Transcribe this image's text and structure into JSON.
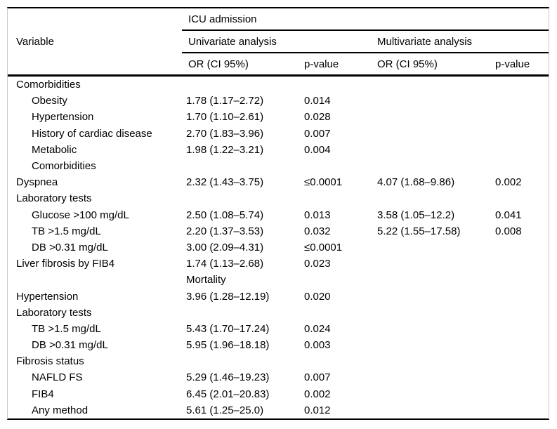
{
  "table": {
    "header": {
      "variable": "Variable",
      "group": "ICU admission",
      "subgroup_univariate": "Univariate analysis",
      "subgroup_multivariate": "Multivariate analysis",
      "col_or_univ": "OR (CI 95%)",
      "col_p_univ": "p-value",
      "col_or_multi": "OR (CI 95%)",
      "col_p_multi": "p-value"
    },
    "rows": [
      {
        "label": "Comorbidities",
        "level": 0,
        "or1": "",
        "p1": "",
        "or2": "",
        "p2": ""
      },
      {
        "label": "Obesity",
        "level": 1,
        "or1": "1.78 (1.17–2.72)",
        "p1": "0.014",
        "or2": "",
        "p2": ""
      },
      {
        "label": "Hypertension",
        "level": 1,
        "or1": "1.70 (1.10–2.61)",
        "p1": "0.028",
        "or2": "",
        "p2": ""
      },
      {
        "label": "History of cardiac disease",
        "level": 1,
        "or1": "2.70 (1.83–3.96)",
        "p1": "0.007",
        "or2": "",
        "p2": ""
      },
      {
        "label": "Metabolic",
        "level": 1,
        "or1": "1.98 (1.22–3.21)",
        "p1": "0.004",
        "or2": "",
        "p2": ""
      },
      {
        "label": "Comorbidities",
        "level": 1,
        "or1": "",
        "p1": "",
        "or2": "",
        "p2": ""
      },
      {
        "label": "Dyspnea",
        "level": 0,
        "or1": "2.32 (1.43–3.75)",
        "p1": "≤0.0001",
        "or2": "4.07 (1.68–9.86)",
        "p2": "0.002"
      },
      {
        "label": "Laboratory tests",
        "level": 0,
        "or1": "",
        "p1": "",
        "or2": "",
        "p2": ""
      },
      {
        "label": "Glucose >100 mg/dL",
        "level": 1,
        "or1": "2.50 (1.08–5.74)",
        "p1": "0.013",
        "or2": "3.58 (1.05–12.2)",
        "p2": "0.041"
      },
      {
        "label": "TB >1.5 mg/dL",
        "level": 1,
        "or1": "2.20 (1.37–3.53)",
        "p1": "0.032",
        "or2": "5.22 (1.55–17.58)",
        "p2": "0.008"
      },
      {
        "label": "DB >0.31 mg/dL",
        "level": 1,
        "or1": "3.00 (2.09–4.31)",
        "p1": "≤0.0001",
        "or2": "",
        "p2": ""
      },
      {
        "label": "Liver fibrosis by FIB4",
        "level": 0,
        "or1": "1.74 (1.13–2.68)",
        "p1": "0.023",
        "or2": "",
        "p2": ""
      },
      {
        "label": "",
        "level": 0,
        "or1": "Mortality",
        "p1": "",
        "or2": "",
        "p2": ""
      },
      {
        "label": "Hypertension",
        "level": 0,
        "or1": "3.96 (1.28–12.19)",
        "p1": "0.020",
        "or2": "",
        "p2": ""
      },
      {
        "label": "Laboratory tests",
        "level": 0,
        "or1": "",
        "p1": "",
        "or2": "",
        "p2": ""
      },
      {
        "label": "TB >1.5 mg/dL",
        "level": 1,
        "or1": "5.43 (1.70–17.24)",
        "p1": "0.024",
        "or2": "",
        "p2": ""
      },
      {
        "label": "DB >0.31 mg/dL",
        "level": 1,
        "or1": "5.95 (1.96–18.18)",
        "p1": "0.003",
        "or2": "",
        "p2": ""
      },
      {
        "label": "Fibrosis status",
        "level": 0,
        "or1": "",
        "p1": "",
        "or2": "",
        "p2": ""
      },
      {
        "label": "NAFLD FS",
        "level": 1,
        "or1": "5.29 (1.46–19.23)",
        "p1": "0.007",
        "or2": "",
        "p2": ""
      },
      {
        "label": "FIB4",
        "level": 1,
        "or1": "6.45 (2.01–20.83)",
        "p1": "0.002",
        "or2": "",
        "p2": ""
      },
      {
        "label": "Any method",
        "level": 1,
        "or1": "5.61 (1.25–25.0)",
        "p1": "0.012",
        "or2": "",
        "p2": ""
      }
    ]
  }
}
